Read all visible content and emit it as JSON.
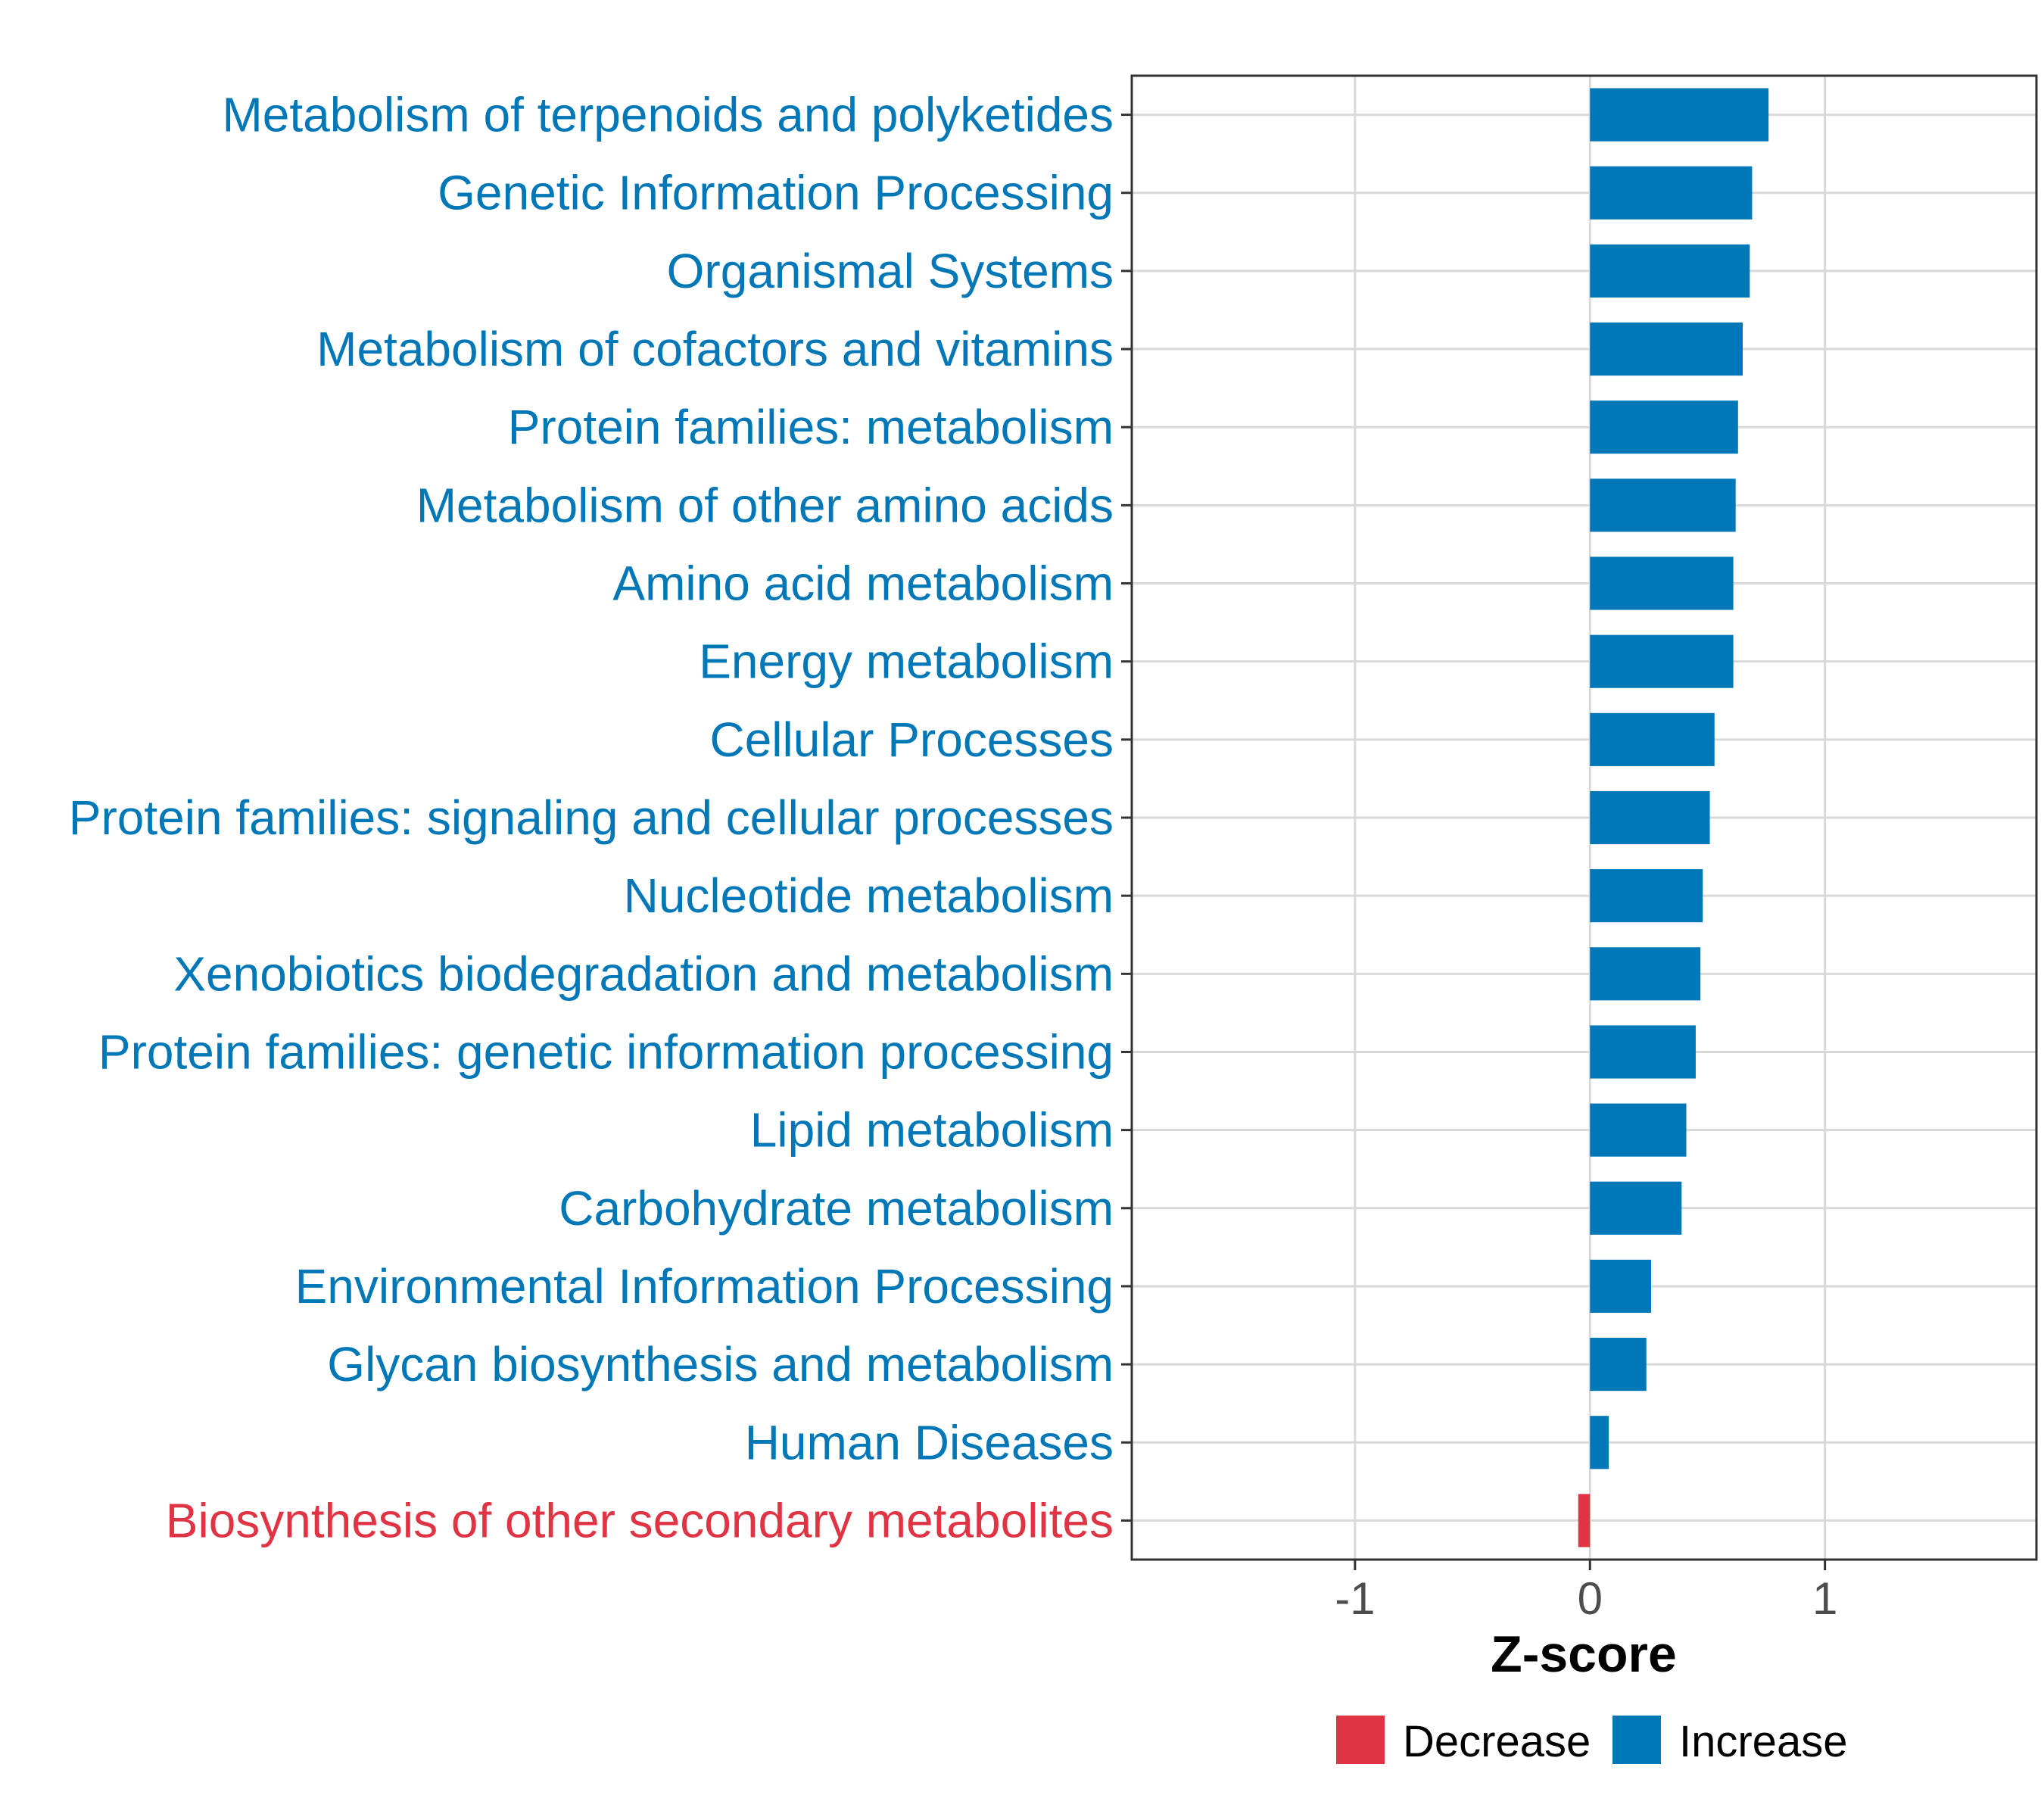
{
  "chart_data": {
    "type": "bar",
    "orientation": "horizontal",
    "title": "",
    "xlabel": "Z-score",
    "ylabel": "",
    "xlim": [
      -1.95,
      1.9
    ],
    "xticks": [
      -1,
      0,
      1
    ],
    "xtick_labels": [
      "-1",
      "0",
      "1"
    ],
    "grid": true,
    "legend_position": "bottom",
    "colors": {
      "Decrease": "#e03444",
      "Increase": "#0077b6"
    },
    "legend": [
      {
        "label": "Decrease",
        "color": "#e03444"
      },
      {
        "label": "Increase",
        "color": "#0077b6"
      }
    ],
    "categories": [
      "Metabolism of terpenoids and polyketides",
      "Genetic Information Processing",
      "Organismal Systems",
      "Metabolism of cofactors and vitamins",
      "Protein families: metabolism",
      "Metabolism of other amino acids",
      "Amino acid metabolism",
      "Energy metabolism",
      "Cellular Processes",
      "Protein families: signaling and cellular processes",
      "Nucleotide metabolism",
      "Xenobiotics biodegradation and metabolism",
      "Protein families: genetic information processing",
      "Lipid metabolism",
      "Carbohydrate metabolism",
      "Environmental Information Processing",
      "Glycan biosynthesis and metabolism",
      "Human Diseases",
      "Biosynthesis of other secondary metabolites"
    ],
    "values": [
      0.76,
      0.69,
      0.68,
      0.65,
      0.63,
      0.62,
      0.61,
      0.61,
      0.53,
      0.51,
      0.48,
      0.47,
      0.45,
      0.41,
      0.39,
      0.26,
      0.24,
      0.08,
      -0.05
    ],
    "groups": [
      "Increase",
      "Increase",
      "Increase",
      "Increase",
      "Increase",
      "Increase",
      "Increase",
      "Increase",
      "Increase",
      "Increase",
      "Increase",
      "Increase",
      "Increase",
      "Increase",
      "Increase",
      "Increase",
      "Increase",
      "Increase",
      "Decrease"
    ]
  }
}
